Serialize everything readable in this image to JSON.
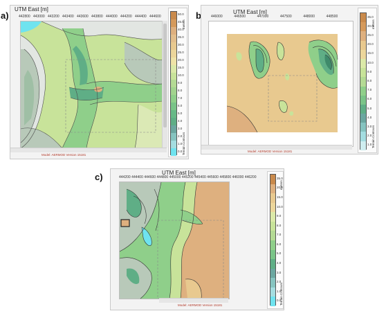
{
  "panels": [
    {
      "label": "a)",
      "axis_title": "UTM East [m]",
      "ticks": [
        "442800",
        "443000",
        "443200",
        "443400",
        "443600",
        "443800",
        "444000",
        "444200",
        "444400",
        "444600"
      ],
      "footer": "Model: AERMOD Version 15181",
      "legend": {
        "units": "meters",
        "caption": "Terrain Contours",
        "values": [
          "50.0",
          "45.0",
          "40.0",
          "35.0",
          "30.0",
          "25.0",
          "20.0",
          "15.0",
          "10.0",
          "9.0",
          "8.0",
          "7.0",
          "6.0",
          "5.0",
          "4.0",
          "3.0",
          "2.0",
          "1.0",
          "0.0"
        ]
      }
    },
    {
      "label": "b)",
      "axis_title": "UTM East [m]",
      "ticks": [
        "446000",
        "446500",
        "447000",
        "447500",
        "448000",
        "448500"
      ],
      "footer": "Model: AERMOD Version 15181",
      "legend": {
        "units": "meters",
        "caption": "Terrain Contours",
        "values": [
          "35.0",
          "30.0",
          "25.0",
          "20.0",
          "15.0",
          "10.0",
          "9.0",
          "8.0",
          "7.0",
          "6.0",
          "5.0",
          "4.0",
          "3.0",
          "2.0",
          "1.0"
        ]
      }
    },
    {
      "label": "c)",
      "axis_title": "UTM East [m]",
      "ticks": [
        "444200",
        "444400",
        "444600",
        "444800",
        "445000",
        "445200",
        "445400",
        "445600",
        "445800",
        "446000",
        "446200"
      ],
      "footer": "Model: AERMOD Version 15181",
      "legend": {
        "units": "meters",
        "caption": "Terrain Contours",
        "values": [
          "35.0",
          "20.0",
          "15.0",
          "10.0",
          "9.0",
          "8.0",
          "7.0",
          "6.0",
          "5.0",
          "4.0",
          "3.0",
          "2.0",
          "1.0",
          "0.0"
        ]
      }
    }
  ],
  "colors": {
    "tan": "#deb07f",
    "light_tan": "#e8c98f",
    "cyan": "#6fe3ef",
    "light_green": "#c8e39a",
    "mid_green": "#8fcf8a",
    "dark_green": "#5fae86",
    "grey_green": "#b8c9b9",
    "light_grey": "#e2e6e2"
  }
}
